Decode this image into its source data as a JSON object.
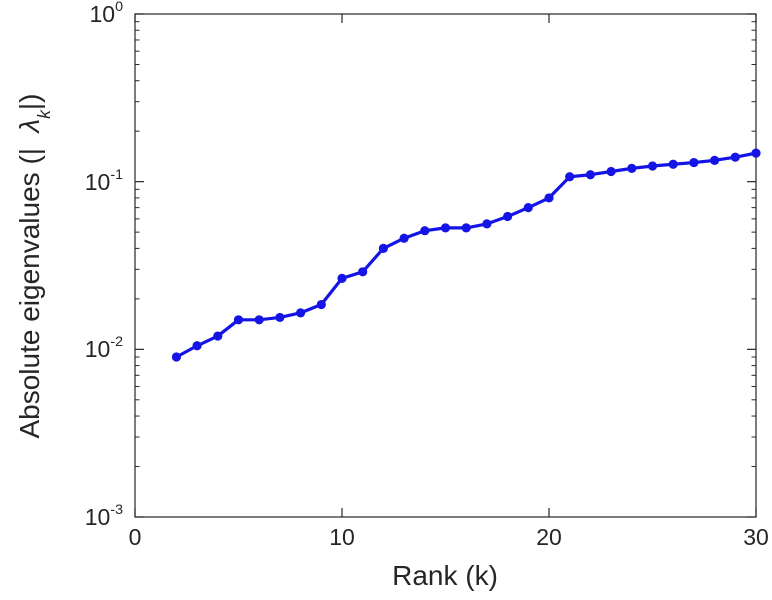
{
  "chart_data": {
    "type": "line",
    "title": "",
    "xlabel": "Rank (k)",
    "ylabel_prefix": "Absolute eigenvalues (|",
    "ylabel_symbol": "λ",
    "ylabel_sub": "k",
    "ylabel_suffix": "|)",
    "x": [
      2,
      3,
      4,
      5,
      6,
      7,
      8,
      9,
      10,
      11,
      12,
      13,
      14,
      15,
      16,
      17,
      18,
      19,
      20,
      21,
      22,
      23,
      24,
      25,
      26,
      27,
      28,
      29,
      30
    ],
    "y": [
      0.009,
      0.0105,
      0.012,
      0.015,
      0.015,
      0.0155,
      0.0165,
      0.0185,
      0.0265,
      0.029,
      0.04,
      0.046,
      0.051,
      0.053,
      0.053,
      0.056,
      0.062,
      0.07,
      0.08,
      0.107,
      0.11,
      0.115,
      0.12,
      0.124,
      0.127,
      0.13,
      0.134,
      0.14,
      0.148
    ],
    "xlim": [
      0,
      30
    ],
    "yscale": "log",
    "ylim_exponents": [
      -3,
      0
    ],
    "x_ticks": [
      0,
      10,
      20,
      30
    ],
    "y_tick_exponents": [
      -3,
      -2,
      -1,
      0
    ],
    "y_minor_ticks": true,
    "grid": false,
    "legend": null,
    "line_color": "#1414e6",
    "marker": "circle",
    "axis_color": "#262626",
    "background_color": "#ffffff"
  }
}
